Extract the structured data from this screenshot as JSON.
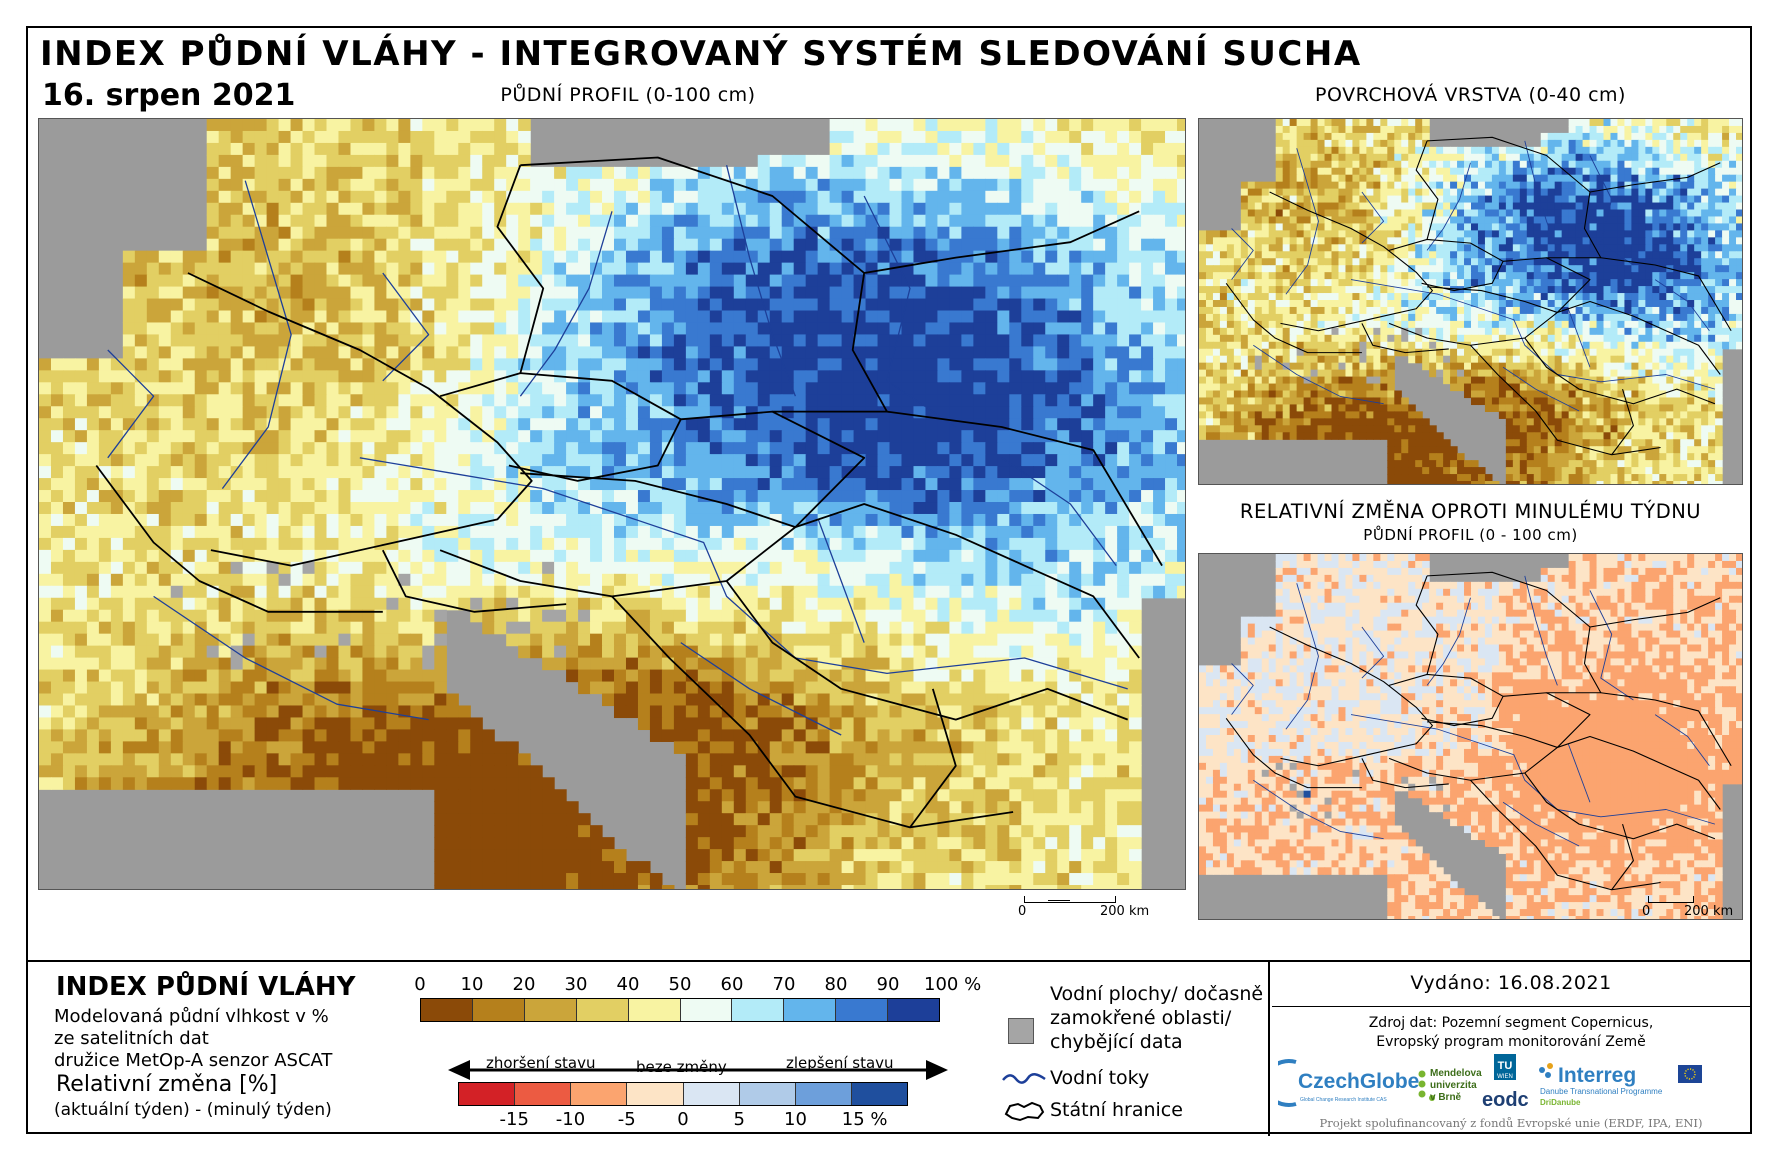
{
  "header": {
    "title": "INDEX PŮDNÍ VLÁHY - INTEGROVANÝ SYSTÉM SLEDOVÁNÍ SUCHA",
    "date": "16. srpen 2021"
  },
  "maps": {
    "main_title": "PŮDNÍ PROFIL (0-100 cm)",
    "surface_title": "POVRCHOVÁ VRSTVA (0-40 cm)",
    "change_title": "RELATIVNÍ ZMĚNA OPROTI MINULÉMU TÝDNU",
    "change_subtitle": "PŮDNÍ PROFIL (0 - 100 cm)",
    "main_scale": {
      "start": "0",
      "end": "200 km"
    },
    "change_scale": {
      "start": "0",
      "end": "200 km"
    }
  },
  "legend": {
    "title": "INDEX PŮDNÍ VLÁHY",
    "desc_line1": "Modelovaná půdní vlhkost v %",
    "desc_line2": "ze satelitních dat",
    "desc_line3": "družice MetOp-A senzor ASCAT",
    "rel_title": "Relativní změna [%]",
    "rel_formula": "(aktuální týden) - (minulý týden)",
    "scale_ticks": [
      "0",
      "10",
      "20",
      "30",
      "40",
      "50",
      "60",
      "70",
      "80",
      "90",
      "100 %"
    ],
    "scale_colors": [
      "#8b4a08",
      "#b5801c",
      "#cba53a",
      "#e2cf63",
      "#f8f3a2",
      "#eefbf3",
      "#b3ebf8",
      "#63b5ec",
      "#3979d0",
      "#1d3f99"
    ],
    "arrow_left": "zhoršení stavu",
    "arrow_mid": "beze změny",
    "arrow_right": "zlepšení stavu",
    "change_colors": [
      "#d32126",
      "#ec5b42",
      "#fba46f",
      "#fde4c6",
      "#dae6f3",
      "#b0cbe8",
      "#6d9fdb",
      "#1f4f9e"
    ],
    "change_ticks": [
      "-15",
      "-10",
      "-5",
      "0",
      "5",
      "10",
      "15 %"
    ],
    "water_label": "Vodní plochy/ dočasně zamokřené oblasti/ chybějící data",
    "water_line1": "Vodní plochy/ dočasně",
    "water_line2": "zamokřené oblasti/",
    "water_line3": "chybějící data",
    "rivers_label": "Vodní toky",
    "borders_label": "Státní hranice",
    "colors": {
      "missing": "#a5a5a5",
      "river": "#1d3f99",
      "border": "#000000"
    }
  },
  "credits": {
    "issued": "Vydáno: 16.08.2021",
    "source_line1": "Zdroj dat: Pozemní segment Copernicus,",
    "source_line2": "Evropský program monitorování Země",
    "footer": "Projekt spolufinancovaný z fondů Evropské unie (ERDF, IPA, ENI)",
    "logos": {
      "czechglobe": "CzechGlobe",
      "czechglobe_sub": "Global Change Research Institute CAS",
      "mendel_1": "Mendelova",
      "mendel_2": "univerzita",
      "mendel_3": "v Brně",
      "tu_1": "TU",
      "tu_2": "WIEN",
      "eodc": "eodc",
      "interreg": "Interreg",
      "interreg_sub1": "Danube Transnational Programme",
      "interreg_sub2": "DriDanube"
    }
  }
}
